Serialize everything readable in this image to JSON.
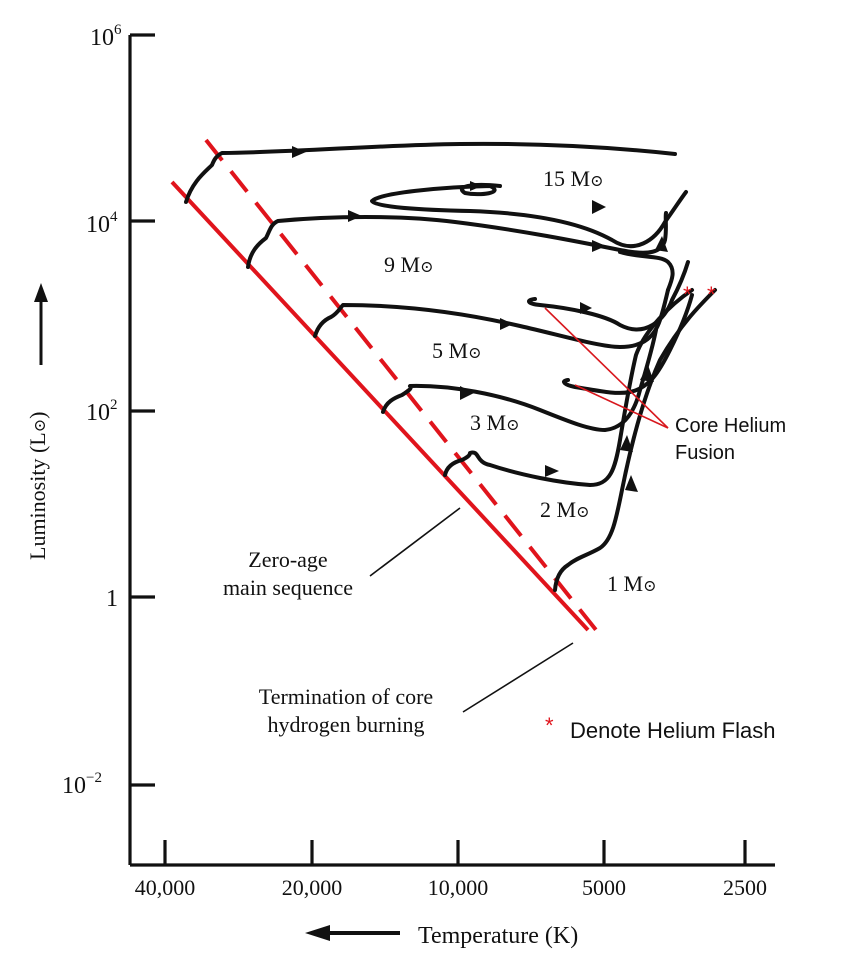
{
  "axes": {
    "y_label": "Luminosity (L",
    "y_label_sym": "⊙",
    "y_label_close": ")",
    "y_ticks": [
      {
        "base": "10",
        "exp": "6"
      },
      {
        "base": "10",
        "exp": "4"
      },
      {
        "base": "10",
        "exp": "2"
      },
      {
        "base": "1",
        "exp": ""
      },
      {
        "base": "10",
        "exp": "−2"
      }
    ],
    "x_label": "Temperature (K)",
    "x_ticks": [
      "40,000",
      "20,000",
      "10,000",
      "5000",
      "2500"
    ]
  },
  "tracks": [
    {
      "mass": "15 M",
      "sym": "⊙"
    },
    {
      "mass": "9 M",
      "sym": "⊙"
    },
    {
      "mass": "5 M",
      "sym": "⊙"
    },
    {
      "mass": "3 M",
      "sym": "⊙"
    },
    {
      "mass": "2 M",
      "sym": "⊙"
    },
    {
      "mass": "1 M",
      "sym": "⊙"
    }
  ],
  "annotations": {
    "zams_line1": "Zero-age",
    "zams_line2": "main sequence",
    "term_line1": "Termination of core",
    "term_line2": "hydrogen burning",
    "helium_fusion_line1": "Core Helium",
    "helium_fusion_line2": "Fusion",
    "flash_marker": "*",
    "flash_text": "Denote Helium Flash"
  },
  "colors": {
    "zams_line": "#e0141c",
    "termination_line": "#e0141c",
    "tracks": "#111111",
    "flash_marker": "#e0141c"
  }
}
